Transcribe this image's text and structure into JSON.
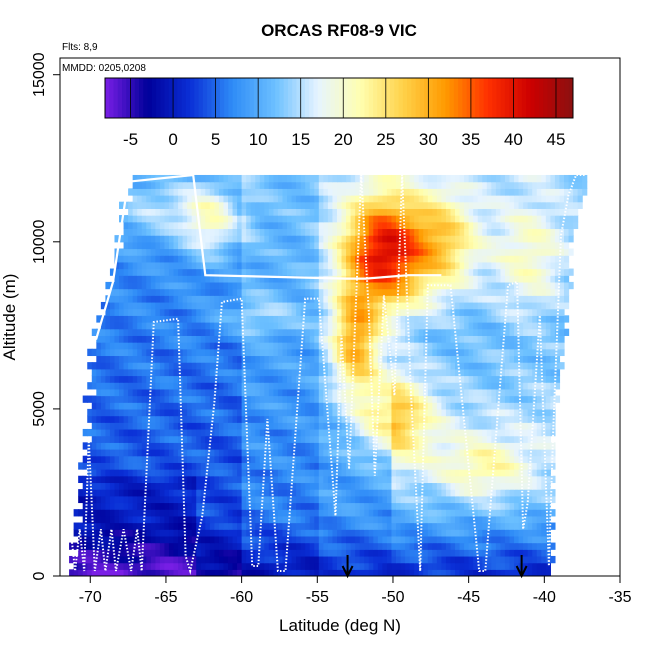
{
  "chart_data": {
    "type": "heatmap",
    "title": "ORCAS RF08-9 VIC",
    "xlabel": "Latitude (deg N)",
    "ylabel": "Altitude (m)",
    "xlim": [
      -72,
      -35
    ],
    "ylim": [
      0,
      15500
    ],
    "x_ticks": [
      -70,
      -65,
      -60,
      -55,
      -50,
      -45,
      -40,
      -35
    ],
    "y_ticks": [
      0,
      5000,
      10000,
      15000
    ],
    "annotations": {
      "flights": "Flts: 8,9",
      "dates": "MMDD: 0205,0208"
    },
    "colorbar": {
      "range": [
        -8,
        47
      ],
      "ticks": [
        -5,
        0,
        5,
        10,
        15,
        20,
        25,
        30,
        35,
        40,
        45
      ],
      "colors": [
        "#7a1fe6",
        "#00009a",
        "#0a2fd6",
        "#2f8cf7",
        "#6cc0ff",
        "#e6f4ff",
        "#ffffb0",
        "#ffd24a",
        "#ff9a00",
        "#ff3000",
        "#cc0000",
        "#8b1010"
      ]
    },
    "arrows_lat": [
      -53.0,
      -41.5
    ],
    "grid": false,
    "legend": "none"
  }
}
